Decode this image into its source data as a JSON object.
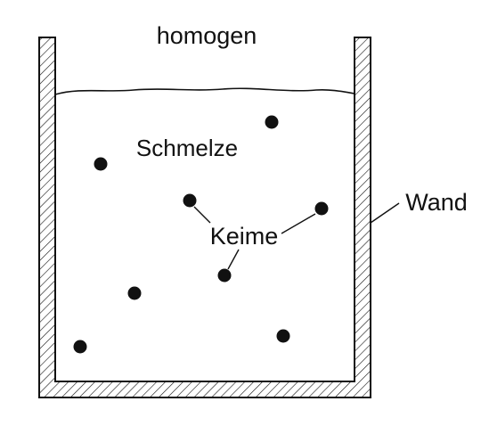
{
  "labels": {
    "title": "homogen",
    "melt": "Schmelze",
    "nuclei": "Keime",
    "wall": "Wand"
  },
  "colors": {
    "ink": "#111111",
    "background": "#ffffff"
  }
}
